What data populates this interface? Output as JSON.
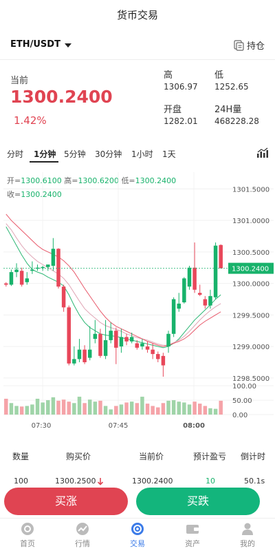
{
  "header": {
    "title": "货币交易"
  },
  "pair": {
    "symbol": "ETH/USDT",
    "holdings_label": "持仓"
  },
  "ticker": {
    "current_label": "当前",
    "price": "1300.2400",
    "change": "1.42%",
    "high_label": "高",
    "high": "1306.97",
    "low_label": "低",
    "low": "1252.65",
    "open_label": "开盘",
    "open": "1282.01",
    "vol_label": "24H量",
    "vol": "468228.28"
  },
  "intervals": [
    "分时",
    "1分钟",
    "5分钟",
    "30分钟",
    "1小时",
    "1天"
  ],
  "active_interval": "1分钟",
  "ohlc": {
    "open_label": "开=",
    "open": "1300.6100",
    "high_label": "高=",
    "high": "1300.6200",
    "low_label": "低=",
    "low": "1300.2400",
    "close_label": "收=",
    "close": "1300.2400"
  },
  "chart_data": {
    "type": "candlestick",
    "price_axis": [
      "1301.5000",
      "1301.0000",
      "1300.5000",
      "1300.0000",
      "1299.5000",
      "1299.0000",
      "1298.5000"
    ],
    "current_price_tag": "1300.2400",
    "volume_axis": [
      "100.00",
      "50.00",
      "0.00"
    ],
    "time_labels": [
      "07:30",
      "07:45",
      "08:00"
    ],
    "ylim": [
      1298.4,
      1301.7
    ],
    "candles": [
      {
        "o": 1300.0,
        "h": 1300.02,
        "c": 1299.98,
        "l": 1299.95
      },
      {
        "o": 1299.98,
        "h": 1300.22,
        "c": 1300.18,
        "l": 1299.96
      },
      {
        "o": 1300.18,
        "h": 1300.32,
        "c": 1300.22,
        "l": 1300.1
      },
      {
        "o": 1300.2,
        "h": 1300.25,
        "c": 1299.98,
        "l": 1299.95
      },
      {
        "o": 1300.02,
        "h": 1300.18,
        "c": 1300.08,
        "l": 1299.98
      },
      {
        "o": 1300.2,
        "h": 1300.35,
        "c": 1300.22,
        "l": 1300.15
      },
      {
        "o": 1300.24,
        "h": 1300.3,
        "c": 1300.25,
        "l": 1300.2
      },
      {
        "o": 1300.25,
        "h": 1300.28,
        "c": 1300.26,
        "l": 1300.2
      },
      {
        "o": 1300.26,
        "h": 1300.28,
        "c": 1300.3,
        "l": 1300.2
      },
      {
        "o": 1300.28,
        "h": 1300.72,
        "c": 1300.55,
        "l": 1300.2
      },
      {
        "o": 1300.55,
        "h": 1300.56,
        "c": 1299.95,
        "l": 1299.92
      },
      {
        "o": 1299.95,
        "h": 1299.98,
        "c": 1299.62,
        "l": 1299.55
      },
      {
        "o": 1299.62,
        "h": 1299.65,
        "c": 1298.73,
        "l": 1298.7
      },
      {
        "o": 1298.73,
        "h": 1299.0,
        "c": 1298.8,
        "l": 1298.7
      },
      {
        "o": 1298.8,
        "h": 1299.12,
        "c": 1298.95,
        "l": 1298.75
      },
      {
        "o": 1298.95,
        "h": 1299.02,
        "c": 1298.75,
        "l": 1298.72
      },
      {
        "o": 1298.82,
        "h": 1299.32,
        "c": 1298.95,
        "l": 1298.78
      },
      {
        "o": 1299.12,
        "h": 1299.42,
        "c": 1299.2,
        "l": 1299.05
      },
      {
        "o": 1299.2,
        "h": 1299.28,
        "c": 1298.85,
        "l": 1298.82
      },
      {
        "o": 1298.85,
        "h": 1299.42,
        "c": 1299.1,
        "l": 1298.8
      },
      {
        "o": 1299.1,
        "h": 1299.38,
        "c": 1299.25,
        "l": 1299.05
      },
      {
        "o": 1299.25,
        "h": 1299.3,
        "c": 1298.98,
        "l": 1298.72
      },
      {
        "o": 1299.0,
        "h": 1299.28,
        "c": 1299.15,
        "l": 1298.9
      },
      {
        "o": 1299.15,
        "h": 1299.2,
        "c": 1299.08,
        "l": 1299.02
      },
      {
        "o": 1299.08,
        "h": 1299.22,
        "c": 1299.15,
        "l": 1299.05
      },
      {
        "o": 1299.05,
        "h": 1299.1,
        "c": 1298.98,
        "l": 1298.95
      },
      {
        "o": 1299.0,
        "h": 1299.12,
        "c": 1299.05,
        "l": 1298.95
      },
      {
        "o": 1299.0,
        "h": 1299.08,
        "c": 1298.95,
        "l": 1298.9
      },
      {
        "o": 1298.95,
        "h": 1299.05,
        "c": 1298.88,
        "l": 1298.8
      },
      {
        "o": 1298.88,
        "h": 1298.92,
        "c": 1298.8,
        "l": 1298.75
      },
      {
        "o": 1298.85,
        "h": 1298.9,
        "c": 1298.7,
        "l": 1298.52
      },
      {
        "o": 1299.0,
        "h": 1299.25,
        "c": 1299.2,
        "l": 1298.9
      },
      {
        "o": 1299.2,
        "h": 1299.78,
        "c": 1299.75,
        "l": 1299.15
      },
      {
        "o": 1299.6,
        "h": 1299.85,
        "c": 1299.68,
        "l": 1299.55
      },
      {
        "o": 1299.7,
        "h": 1300.1,
        "c": 1300.08,
        "l": 1299.68
      },
      {
        "o": 1299.95,
        "h": 1300.28,
        "c": 1300.25,
        "l": 1299.9
      },
      {
        "o": 1300.25,
        "h": 1300.65,
        "c": 1299.9,
        "l": 1299.85
      },
      {
        "o": 1299.85,
        "h": 1299.98,
        "c": 1299.82,
        "l": 1299.8
      },
      {
        "o": 1299.75,
        "h": 1299.8,
        "c": 1299.65,
        "l": 1299.6
      },
      {
        "o": 1299.65,
        "h": 1299.9,
        "c": 1299.8,
        "l": 1299.6
      },
      {
        "o": 1299.78,
        "h": 1300.65,
        "c": 1300.6,
        "l": 1299.75
      },
      {
        "o": 1300.61,
        "h": 1300.62,
        "c": 1300.24,
        "l": 1300.24
      }
    ],
    "ma_lines": [
      {
        "color": "#2bb673",
        "values": [
          1300.9,
          1300.75,
          1300.6,
          1300.45,
          1300.32,
          1300.22,
          1300.18,
          1300.15,
          1300.1,
          1300.06,
          1300.02,
          1299.96,
          1299.82,
          1299.65,
          1299.5,
          1299.38,
          1299.3,
          1299.25,
          1299.2,
          1299.18,
          1299.17,
          1299.16,
          1299.14,
          1299.12,
          1299.1,
          1299.08,
          1299.06,
          1299.04,
          1299.02,
          1299.0,
          1298.98,
          1299.0,
          1299.05,
          1299.12,
          1299.22,
          1299.32,
          1299.42,
          1299.5,
          1299.58,
          1299.66,
          1299.75,
          1299.82
        ]
      },
      {
        "color": "#e0a5b5",
        "values": [
          1300.95,
          1300.85,
          1300.72,
          1300.6,
          1300.5,
          1300.42,
          1300.35,
          1300.3,
          1300.25,
          1300.2,
          1300.15,
          1300.08,
          1299.98,
          1299.85,
          1299.72,
          1299.6,
          1299.52,
          1299.45,
          1299.38,
          1299.33,
          1299.3,
          1299.27,
          1299.24,
          1299.2,
          1299.17,
          1299.14,
          1299.12,
          1299.1,
          1299.07,
          1299.04,
          1299.02,
          1299.02,
          1299.06,
          1299.1,
          1299.16,
          1299.24,
          1299.33,
          1299.42,
          1299.5,
          1299.57,
          1299.63,
          1299.68
        ]
      },
      {
        "color": "#e8586a",
        "values": [
          1301.1,
          1301.0,
          1300.92,
          1300.84,
          1300.76,
          1300.68,
          1300.6,
          1300.54,
          1300.5,
          1300.46,
          1300.42,
          1300.36,
          1300.28,
          1300.18,
          1300.05,
          1299.92,
          1299.8,
          1299.68,
          1299.56,
          1299.46,
          1299.38,
          1299.32,
          1299.28,
          1299.24,
          1299.2,
          1299.16,
          1299.12,
          1299.08,
          1299.05,
          1299.02,
          1299.0,
          1299.02,
          1299.05,
          1299.08,
          1299.12,
          1299.18,
          1299.26,
          1299.34,
          1299.4,
          1299.45,
          1299.5,
          1299.55
        ]
      }
    ],
    "volumes": [
      55,
      40,
      30,
      28,
      30,
      35,
      55,
      42,
      50,
      60,
      48,
      52,
      45,
      40,
      62,
      40,
      52,
      45,
      48,
      30,
      18,
      30,
      35,
      42,
      45,
      40,
      62,
      38,
      30,
      25,
      40,
      48,
      50,
      45,
      42,
      35,
      45,
      38,
      30,
      22,
      20,
      48
    ]
  },
  "table": {
    "headers": [
      "数量",
      "购买价",
      "当前价",
      "预计盈亏",
      "倒计时"
    ],
    "row": {
      "qty": "100",
      "buy": "1300.2500",
      "current": "1300.2400",
      "pl": "10",
      "countdown": "50.1s"
    }
  },
  "actions": {
    "buy_up": "买涨",
    "buy_down": "买跌"
  },
  "nav": [
    {
      "label": "首页",
      "icon": "home-icon"
    },
    {
      "label": "行情",
      "icon": "market-icon"
    },
    {
      "label": "交易",
      "icon": "trade-icon"
    },
    {
      "label": "资产",
      "icon": "wallet-icon"
    },
    {
      "label": "我的",
      "icon": "profile-icon"
    }
  ],
  "colors": {
    "up": "#e8475a",
    "down": "#18b26b",
    "active": "#3b7be8"
  }
}
